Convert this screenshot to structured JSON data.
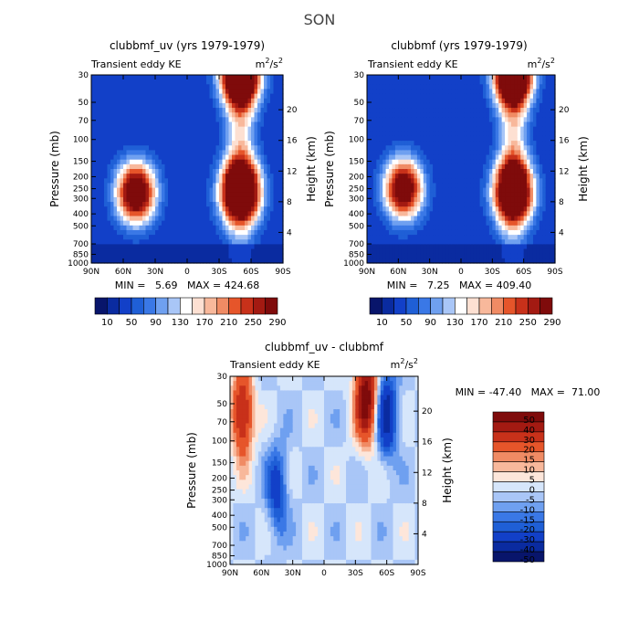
{
  "figure": {
    "title": "SON"
  },
  "colors": {
    "blue_dark": "#08306b",
    "blue_mid": "#1f5fd6",
    "blue_light": "#6fa0f0",
    "blue_pale": "#cfe0fb",
    "white": "#ffffff",
    "red_pale": "#fde0d2",
    "red_light": "#f6a07d",
    "red_mid": "#e6552a",
    "red_dark": "#7f0b0b"
  },
  "chart_data": [
    {
      "type": "heatmap",
      "title": "clubbmf_uv (yrs 1979-1979)",
      "subtitle_left": "Transient eddy KE",
      "units": "m",
      "units_exp": "2",
      "units_sep": "/s",
      "ylabel": "Pressure (mb)",
      "ylabel_right": "Height (km)",
      "x_ticks": [
        "90N",
        "60N",
        "30N",
        "0",
        "30S",
        "60S",
        "90S"
      ],
      "y_ticks": [
        "30",
        "50",
        "70",
        "100",
        "150",
        "200",
        "250",
        "300",
        "400",
        "500",
        "700",
        "850",
        "1000"
      ],
      "y_ticks_right": [
        "20",
        "16",
        "12",
        "8",
        "4"
      ],
      "stats": "MIN =   5.69   MAX = 424.68",
      "colorbar_levels": [
        10,
        30,
        50,
        70,
        90,
        110,
        130,
        150,
        170,
        190,
        210,
        230,
        250,
        270,
        290
      ],
      "colorbar_labels": [
        "10",
        "50",
        "90",
        "130",
        "170",
        "210",
        "250",
        "290"
      ],
      "maxima": [
        {
          "lat": -50,
          "p": 270,
          "peak": 424
        },
        {
          "lat": 48,
          "p": 270,
          "peak": 330
        },
        {
          "lat": -50,
          "p": 30,
          "peak": 380
        }
      ]
    },
    {
      "type": "heatmap",
      "title": "clubbmf (yrs 1979-1979)",
      "subtitle_left": "Transient eddy KE",
      "units": "m",
      "units_exp": "2",
      "units_sep": "/s",
      "ylabel": "Pressure (mb)",
      "ylabel_right": "Height (km)",
      "x_ticks": [
        "90N",
        "60N",
        "30N",
        "0",
        "30S",
        "60S",
        "90S"
      ],
      "y_ticks": [
        "30",
        "50",
        "70",
        "100",
        "150",
        "200",
        "250",
        "300",
        "400",
        "500",
        "700",
        "850",
        "1000"
      ],
      "y_ticks_right": [
        "20",
        "16",
        "12",
        "8",
        "4"
      ],
      "stats": "MIN =   7.25   MAX = 409.40",
      "colorbar_levels": [
        10,
        30,
        50,
        70,
        90,
        110,
        130,
        150,
        170,
        190,
        210,
        230,
        250,
        270,
        290
      ],
      "colorbar_labels": [
        "10",
        "50",
        "90",
        "130",
        "170",
        "210",
        "250",
        "290"
      ],
      "maxima": [
        {
          "lat": -50,
          "p": 270,
          "peak": 409
        },
        {
          "lat": 55,
          "p": 250,
          "peak": 310
        },
        {
          "lat": -50,
          "p": 30,
          "peak": 370
        }
      ]
    },
    {
      "type": "heatmap",
      "title": "clubbmf_uv - clubbmf",
      "subtitle_left": "Transient eddy KE",
      "units": "m",
      "units_exp": "2",
      "units_sep": "/s",
      "ylabel": "Pressure (mb)",
      "ylabel_right": "Height (km)",
      "x_ticks": [
        "90N",
        "60N",
        "30N",
        "0",
        "30S",
        "60S",
        "90S"
      ],
      "y_ticks": [
        "30",
        "50",
        "70",
        "100",
        "150",
        "200",
        "250",
        "300",
        "400",
        "500",
        "700",
        "850",
        "1000"
      ],
      "y_ticks_right": [
        "20",
        "16",
        "12",
        "8",
        "4"
      ],
      "stats": "MIN = -47.40   MAX =  71.00",
      "colorbar_levels": [
        -50,
        -40,
        -30,
        -20,
        -15,
        -10,
        -5,
        0,
        5,
        10,
        15,
        20,
        30,
        40,
        50
      ],
      "colorbar_labels": [
        "50",
        "40",
        "30",
        "20",
        "15",
        "10",
        "5",
        "0",
        "-5",
        "-10",
        "-15",
        "-20",
        "-30",
        "-40",
        "-50"
      ],
      "maxima": [
        {
          "lat": 78,
          "p": 60,
          "peak": 45
        },
        {
          "lat": -40,
          "p": 45,
          "peak": 60
        },
        {
          "lat": -60,
          "p": 60,
          "peak": -35
        },
        {
          "lat": 45,
          "p": 250,
          "peak": -25
        }
      ]
    }
  ]
}
